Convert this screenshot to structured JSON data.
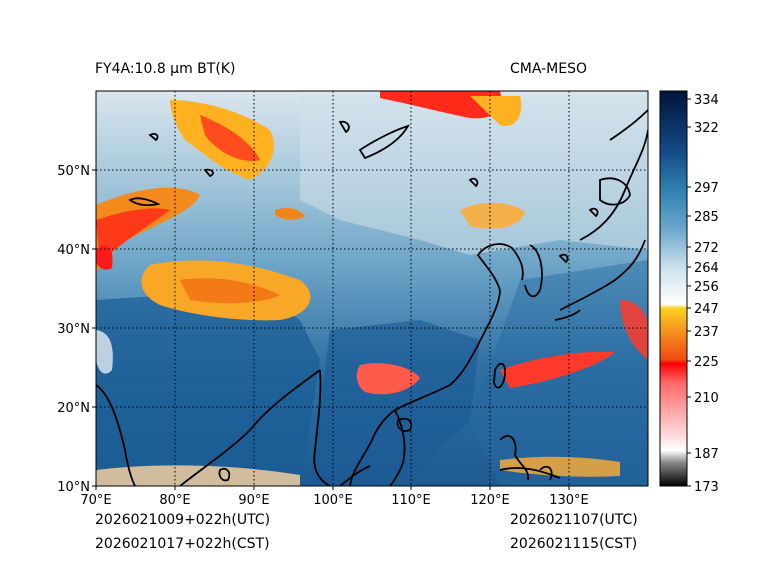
{
  "header": {
    "title_left": "FY4A:10.8 µm BT(K)",
    "title_right": "CMA-MESO"
  },
  "footer": {
    "utc_left": "2026021009+022h(UTC)",
    "cst_left": "2026021017+022h(CST)",
    "utc_right": "2026021107(UTC)",
    "cst_right": "2026021115(CST)"
  },
  "map": {
    "lon_range": [
      70,
      140
    ],
    "lat_range": [
      10,
      60
    ],
    "lon_ticks": [
      "70°E",
      "80°E",
      "90°E",
      "100°E",
      "110°E",
      "120°E",
      "130°E"
    ],
    "lat_ticks": [
      "10°N",
      "20°N",
      "30°N",
      "40°N",
      "50°N"
    ],
    "lon_values": [
      70,
      80,
      90,
      100,
      110,
      120,
      130
    ],
    "lat_values": [
      10,
      20,
      30,
      40,
      50
    ]
  },
  "colorbar": {
    "ticks": [
      "334",
      "322",
      "297",
      "285",
      "272",
      "264",
      "256",
      "247",
      "237",
      "225",
      "210",
      "187",
      "173"
    ],
    "values": [
      334,
      322,
      297,
      285,
      272,
      264,
      256,
      247,
      237,
      225,
      210,
      187,
      173
    ],
    "range": [
      173,
      338
    ],
    "colors": {
      "white": "#ffffff",
      "light_blue": "#c8dde8",
      "mid_blue": "#2f7fb0",
      "dark_navy": "#001f4d",
      "yellow": "#ffd21f",
      "orange": "#f07a17",
      "red": "#ff1a1a",
      "pink": "#ffd0d0",
      "black": "#000000"
    }
  }
}
